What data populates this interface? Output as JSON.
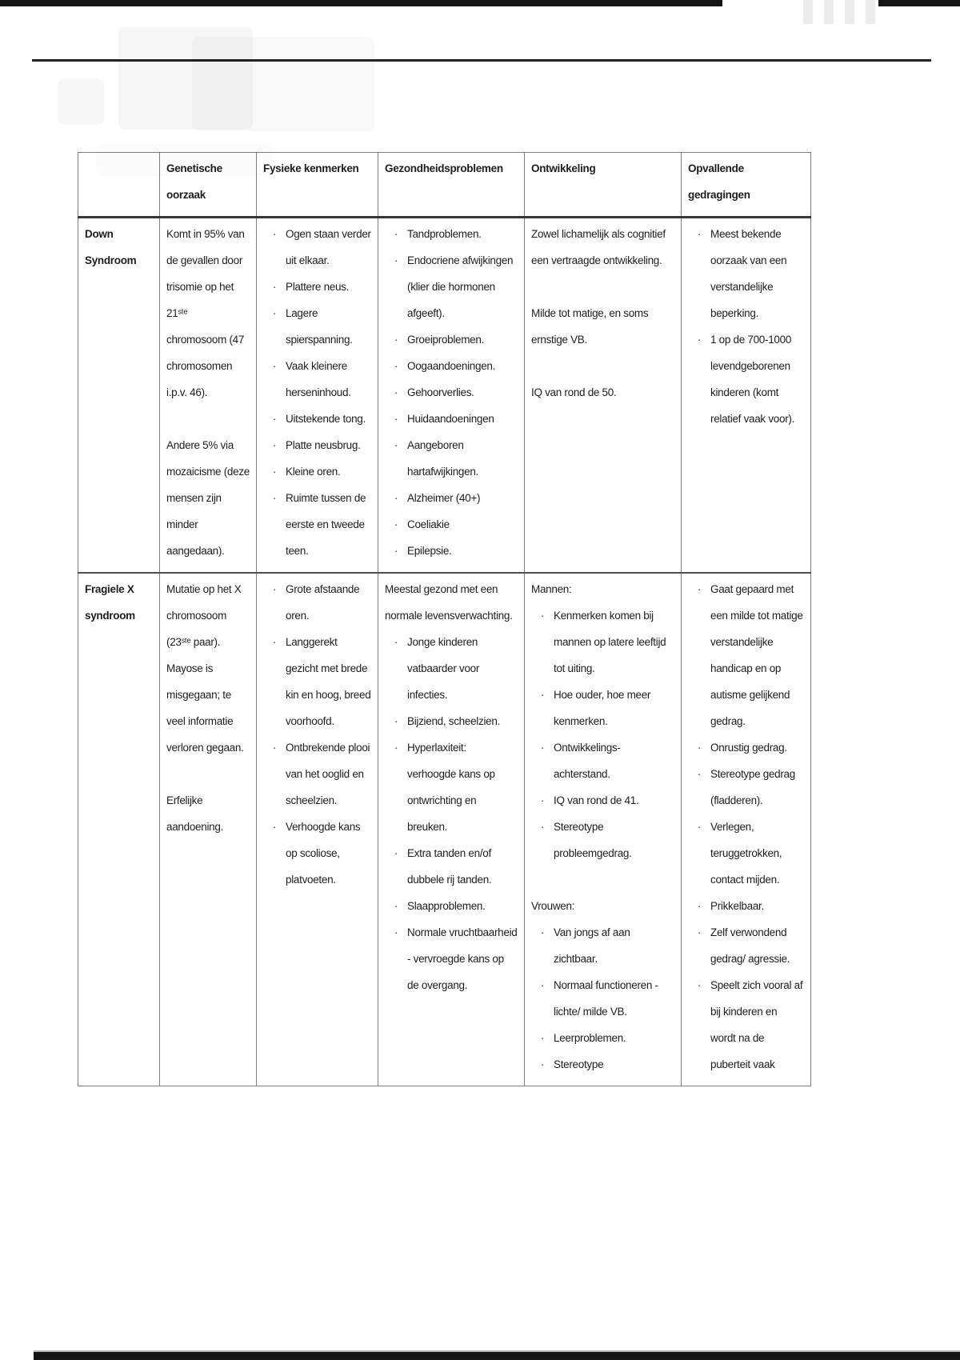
{
  "page": {
    "bar_color": "#141414",
    "rule_color": "#232323",
    "table_border_color": "#7d7d7d",
    "header_rule_color": "#383838",
    "text_color": "#1e1e1e"
  },
  "icons": {
    "bullet_glyph": "·"
  },
  "table": {
    "columns": [
      "Genetische oorzaak",
      "Fysieke kenmerken",
      "Gezondheidsproblemen",
      "Ontwikkeling",
      "Opvallende gedragingen"
    ],
    "rows": [
      {
        "label": "Down Syndroom",
        "cells": [
          {
            "blocks": [
              {
                "type": "p",
                "text": "Komt in 95% van de gevallen door trisomie op het 21ˢᵗᵉ chromosoom (47 chromosomen i.p.v. 46)."
              },
              {
                "type": "gap"
              },
              {
                "type": "p",
                "text": "Andere 5% via mozaicisme (deze mensen zijn minder aangedaan)."
              }
            ]
          },
          {
            "blocks": [
              {
                "type": "ul",
                "items": [
                  "Ogen staan verder uit elkaar.",
                  "Plattere neus.",
                  "Lagere spierspanning.",
                  "Vaak kleinere herseninhoud.",
                  "Uitstekende tong.",
                  "Platte neusbrug.",
                  "Kleine oren.",
                  "Ruimte tussen de eerste en tweede teen."
                ]
              }
            ]
          },
          {
            "blocks": [
              {
                "type": "ul",
                "items": [
                  "Tandproblemen.",
                  "Endocriene afwijkingen (klier die hormonen afgeeft).",
                  "Groeiproblemen.",
                  "Oogaandoeningen.",
                  "Gehoorverlies.",
                  "Huidaandoeningen",
                  "Aangeboren hartafwijkingen.",
                  "Alzheimer (40+)",
                  "Coeliakie",
                  "Epilepsie."
                ]
              }
            ]
          },
          {
            "blocks": [
              {
                "type": "p",
                "text": "Zowel lichamelijk als cognitief een vertraagde ontwikkeling."
              },
              {
                "type": "gap"
              },
              {
                "type": "p",
                "text": "Milde tot matige, en soms ernstige VB."
              },
              {
                "type": "gap"
              },
              {
                "type": "p",
                "text": "IQ van rond de 50."
              }
            ]
          },
          {
            "blocks": [
              {
                "type": "ul",
                "items": [
                  "Meest bekende oorzaak van een verstandelijke beperking.",
                  "1 op de 700-1000 levendgeborenen kinderen (komt relatief vaak voor)."
                ]
              }
            ]
          }
        ]
      },
      {
        "label": "Fragiele X syndroom",
        "cells": [
          {
            "blocks": [
              {
                "type": "p",
                "text": "Mutatie op het X chromosoom (23ˢᵗᵉ paar). Mayose is misgegaan; te veel informatie verloren gegaan."
              },
              {
                "type": "gap"
              },
              {
                "type": "p",
                "text": "Erfelijke aandoening."
              }
            ]
          },
          {
            "blocks": [
              {
                "type": "ul",
                "items": [
                  "Grote afstaande oren.",
                  "Langgerekt gezicht met brede kin en hoog, breed voorhoofd.",
                  "Ontbrekende plooi van het ooglid en scheelzien.",
                  "Verhoogde kans op scoliose, platvoeten."
                ]
              }
            ]
          },
          {
            "blocks": [
              {
                "type": "p",
                "text": "Meestal gezond met een normale levensverwachting."
              },
              {
                "type": "ul",
                "items": [
                  "Jonge kinderen vatbaarder voor infecties.",
                  "Bijziend, scheelzien.",
                  "Hyperlaxiteit: verhoogde kans op ontwrichting en breuken.",
                  "Extra tanden en/of dubbele rij tanden.",
                  "Slaapproblemen.",
                  "Normale vruchtbaarheid - vervroegde kans op de overgang."
                ]
              }
            ]
          },
          {
            "blocks": [
              {
                "type": "p",
                "text": "Mannen:"
              },
              {
                "type": "ul",
                "items": [
                  "Kenmerken komen bij mannen op latere leeftijd tot uiting.",
                  "Hoe ouder, hoe meer kenmerken.",
                  "Ontwikkelings-achterstand.",
                  "IQ van rond de 41.",
                  "Stereotype probleemgedrag."
                ]
              },
              {
                "type": "gap"
              },
              {
                "type": "p",
                "text": "Vrouwen:"
              },
              {
                "type": "ul",
                "items": [
                  "Van jongs af aan zichtbaar.",
                  "Normaal functioneren - lichte/ milde VB.",
                  "Leerproblemen.",
                  "Stereotype"
                ]
              }
            ]
          },
          {
            "blocks": [
              {
                "type": "ul",
                "items": [
                  "Gaat gepaard met een milde tot matige verstandelijke handicap en op autisme gelijkend gedrag.",
                  "Onrustig gedrag.",
                  "Stereotype gedrag (fladderen).",
                  "Verlegen, teruggetrokken, contact mijden.",
                  "Prikkelbaar.",
                  "Zelf verwondend gedrag/ agressie.",
                  "Speelt zich vooral af bij kinderen en wordt na de puberteit vaak"
                ]
              }
            ]
          }
        ]
      }
    ]
  }
}
